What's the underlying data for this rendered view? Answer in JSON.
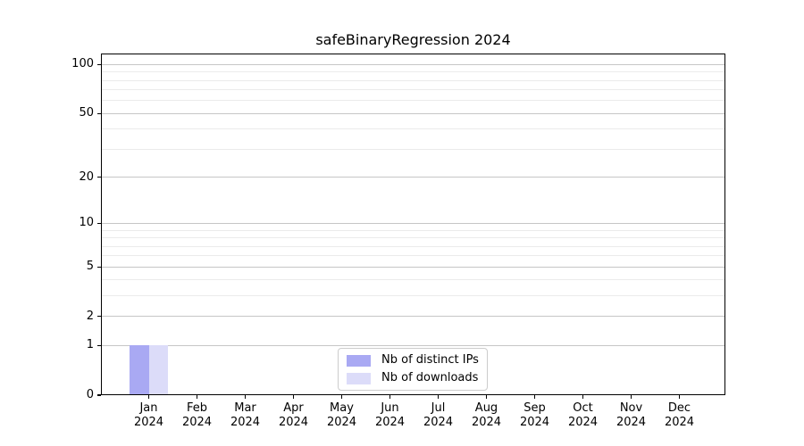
{
  "chart_data": {
    "type": "bar",
    "title": "safeBinaryRegression 2024",
    "x_year": "2024",
    "categories": [
      "Jan",
      "Feb",
      "Mar",
      "Apr",
      "May",
      "Jun",
      "Jul",
      "Aug",
      "Sep",
      "Oct",
      "Nov",
      "Dec"
    ],
    "series": [
      {
        "name": "Nb of distinct IPs",
        "color": "#a9a9f3",
        "values": [
          1,
          0,
          0,
          0,
          0,
          0,
          0,
          0,
          0,
          0,
          0,
          0
        ]
      },
      {
        "name": "Nb of downloads",
        "color": "#dcdcf9",
        "values": [
          1,
          0,
          0,
          0,
          0,
          0,
          0,
          0,
          0,
          0,
          0,
          0
        ]
      }
    ],
    "xlabel": "",
    "ylabel": "",
    "y_scale": "log1p",
    "y_major_ticks": [
      0,
      1,
      2,
      5,
      10,
      20,
      50,
      100
    ],
    "y_minor_ticks": [
      3,
      4,
      6,
      7,
      8,
      9,
      30,
      40,
      60,
      70,
      80,
      90
    ],
    "ylim": [
      0,
      117
    ],
    "grid": "horizontal",
    "legend_position": "lower center"
  }
}
